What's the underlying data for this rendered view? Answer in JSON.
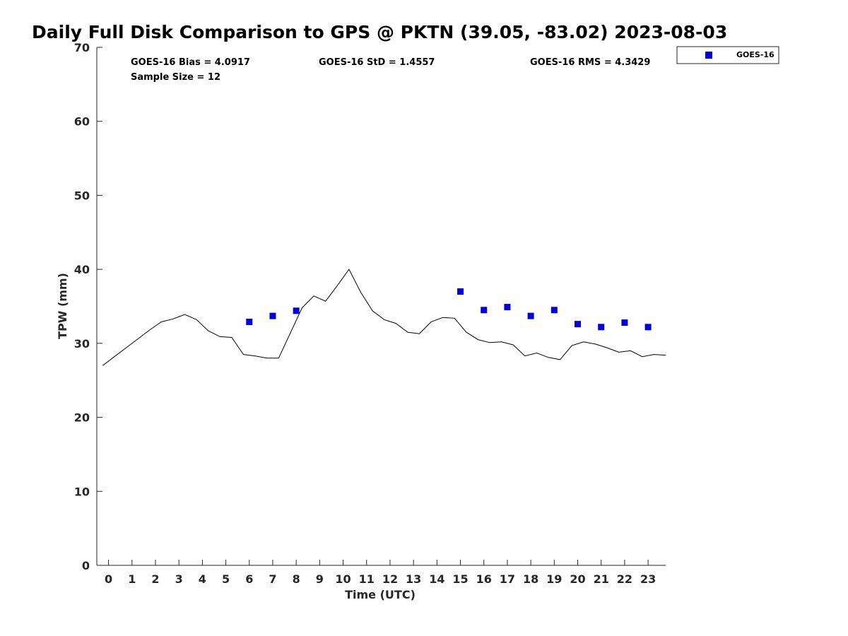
{
  "chart_data": {
    "type": "line",
    "title": "Daily Full Disk Comparison to GPS @ PKTN (39.05, -83.02) 2023-08-03",
    "xlabel": "Time (UTC)",
    "ylabel": "TPW (mm)",
    "xlim": [
      -0.5,
      23.75
    ],
    "ylim": [
      0,
      70
    ],
    "xticks": [
      0,
      1,
      2,
      3,
      4,
      5,
      6,
      7,
      8,
      9,
      10,
      11,
      12,
      13,
      14,
      15,
      16,
      17,
      18,
      19,
      20,
      21,
      22,
      23
    ],
    "yticks": [
      0,
      10,
      20,
      30,
      40,
      50,
      60,
      70
    ],
    "grid": false,
    "legend_position": "top-right",
    "stats": {
      "bias": "GOES-16 Bias = 4.0917",
      "std": "GOES-16 StD = 1.4557",
      "rms": "GOES-16 RMS = 4.3429",
      "sample": "Sample Size = 12"
    },
    "gps_line": {
      "color": "#000000",
      "x": [
        -0.25,
        0.25,
        0.75,
        1.25,
        1.75,
        2.25,
        2.75,
        3.25,
        3.75,
        4.25,
        4.75,
        5.25,
        5.75,
        6.25,
        6.75,
        7.25,
        7.75,
        8.25,
        8.75,
        9.25,
        9.75,
        10.25,
        10.75,
        11.25,
        11.75,
        12.25,
        12.75,
        13.25,
        13.75,
        14.25,
        14.75,
        15.25,
        15.75,
        16.25,
        16.75,
        17.25,
        17.75,
        18.25,
        18.75,
        19.25,
        19.75,
        20.25,
        20.75,
        21.25,
        21.75,
        22.25,
        22.75,
        23.25,
        23.75
      ],
      "y": [
        27.0,
        28.2,
        29.4,
        30.6,
        31.8,
        32.9,
        33.3,
        33.9,
        33.2,
        31.7,
        30.9,
        30.8,
        28.5,
        28.3,
        28.0,
        28.0,
        31.4,
        34.8,
        36.4,
        35.7,
        37.8,
        40.0,
        36.9,
        34.4,
        33.2,
        32.7,
        31.5,
        31.3,
        32.9,
        33.5,
        33.4,
        31.5,
        30.5,
        30.1,
        30.2,
        29.8,
        28.3,
        28.7,
        28.1,
        27.8,
        29.7,
        30.2,
        29.9,
        29.4,
        28.8,
        29.0,
        28.2,
        28.5,
        28.4
      ]
    },
    "series": [
      {
        "name": "GOES-16",
        "color": "#0000dd",
        "marker": "square",
        "x": [
          6,
          7,
          8,
          15,
          16,
          17,
          18,
          19,
          20,
          21,
          22,
          23
        ],
        "y": [
          32.9,
          33.7,
          34.4,
          37.0,
          34.5,
          34.9,
          33.7,
          34.5,
          32.6,
          32.2,
          32.8,
          32.2
        ]
      }
    ]
  }
}
